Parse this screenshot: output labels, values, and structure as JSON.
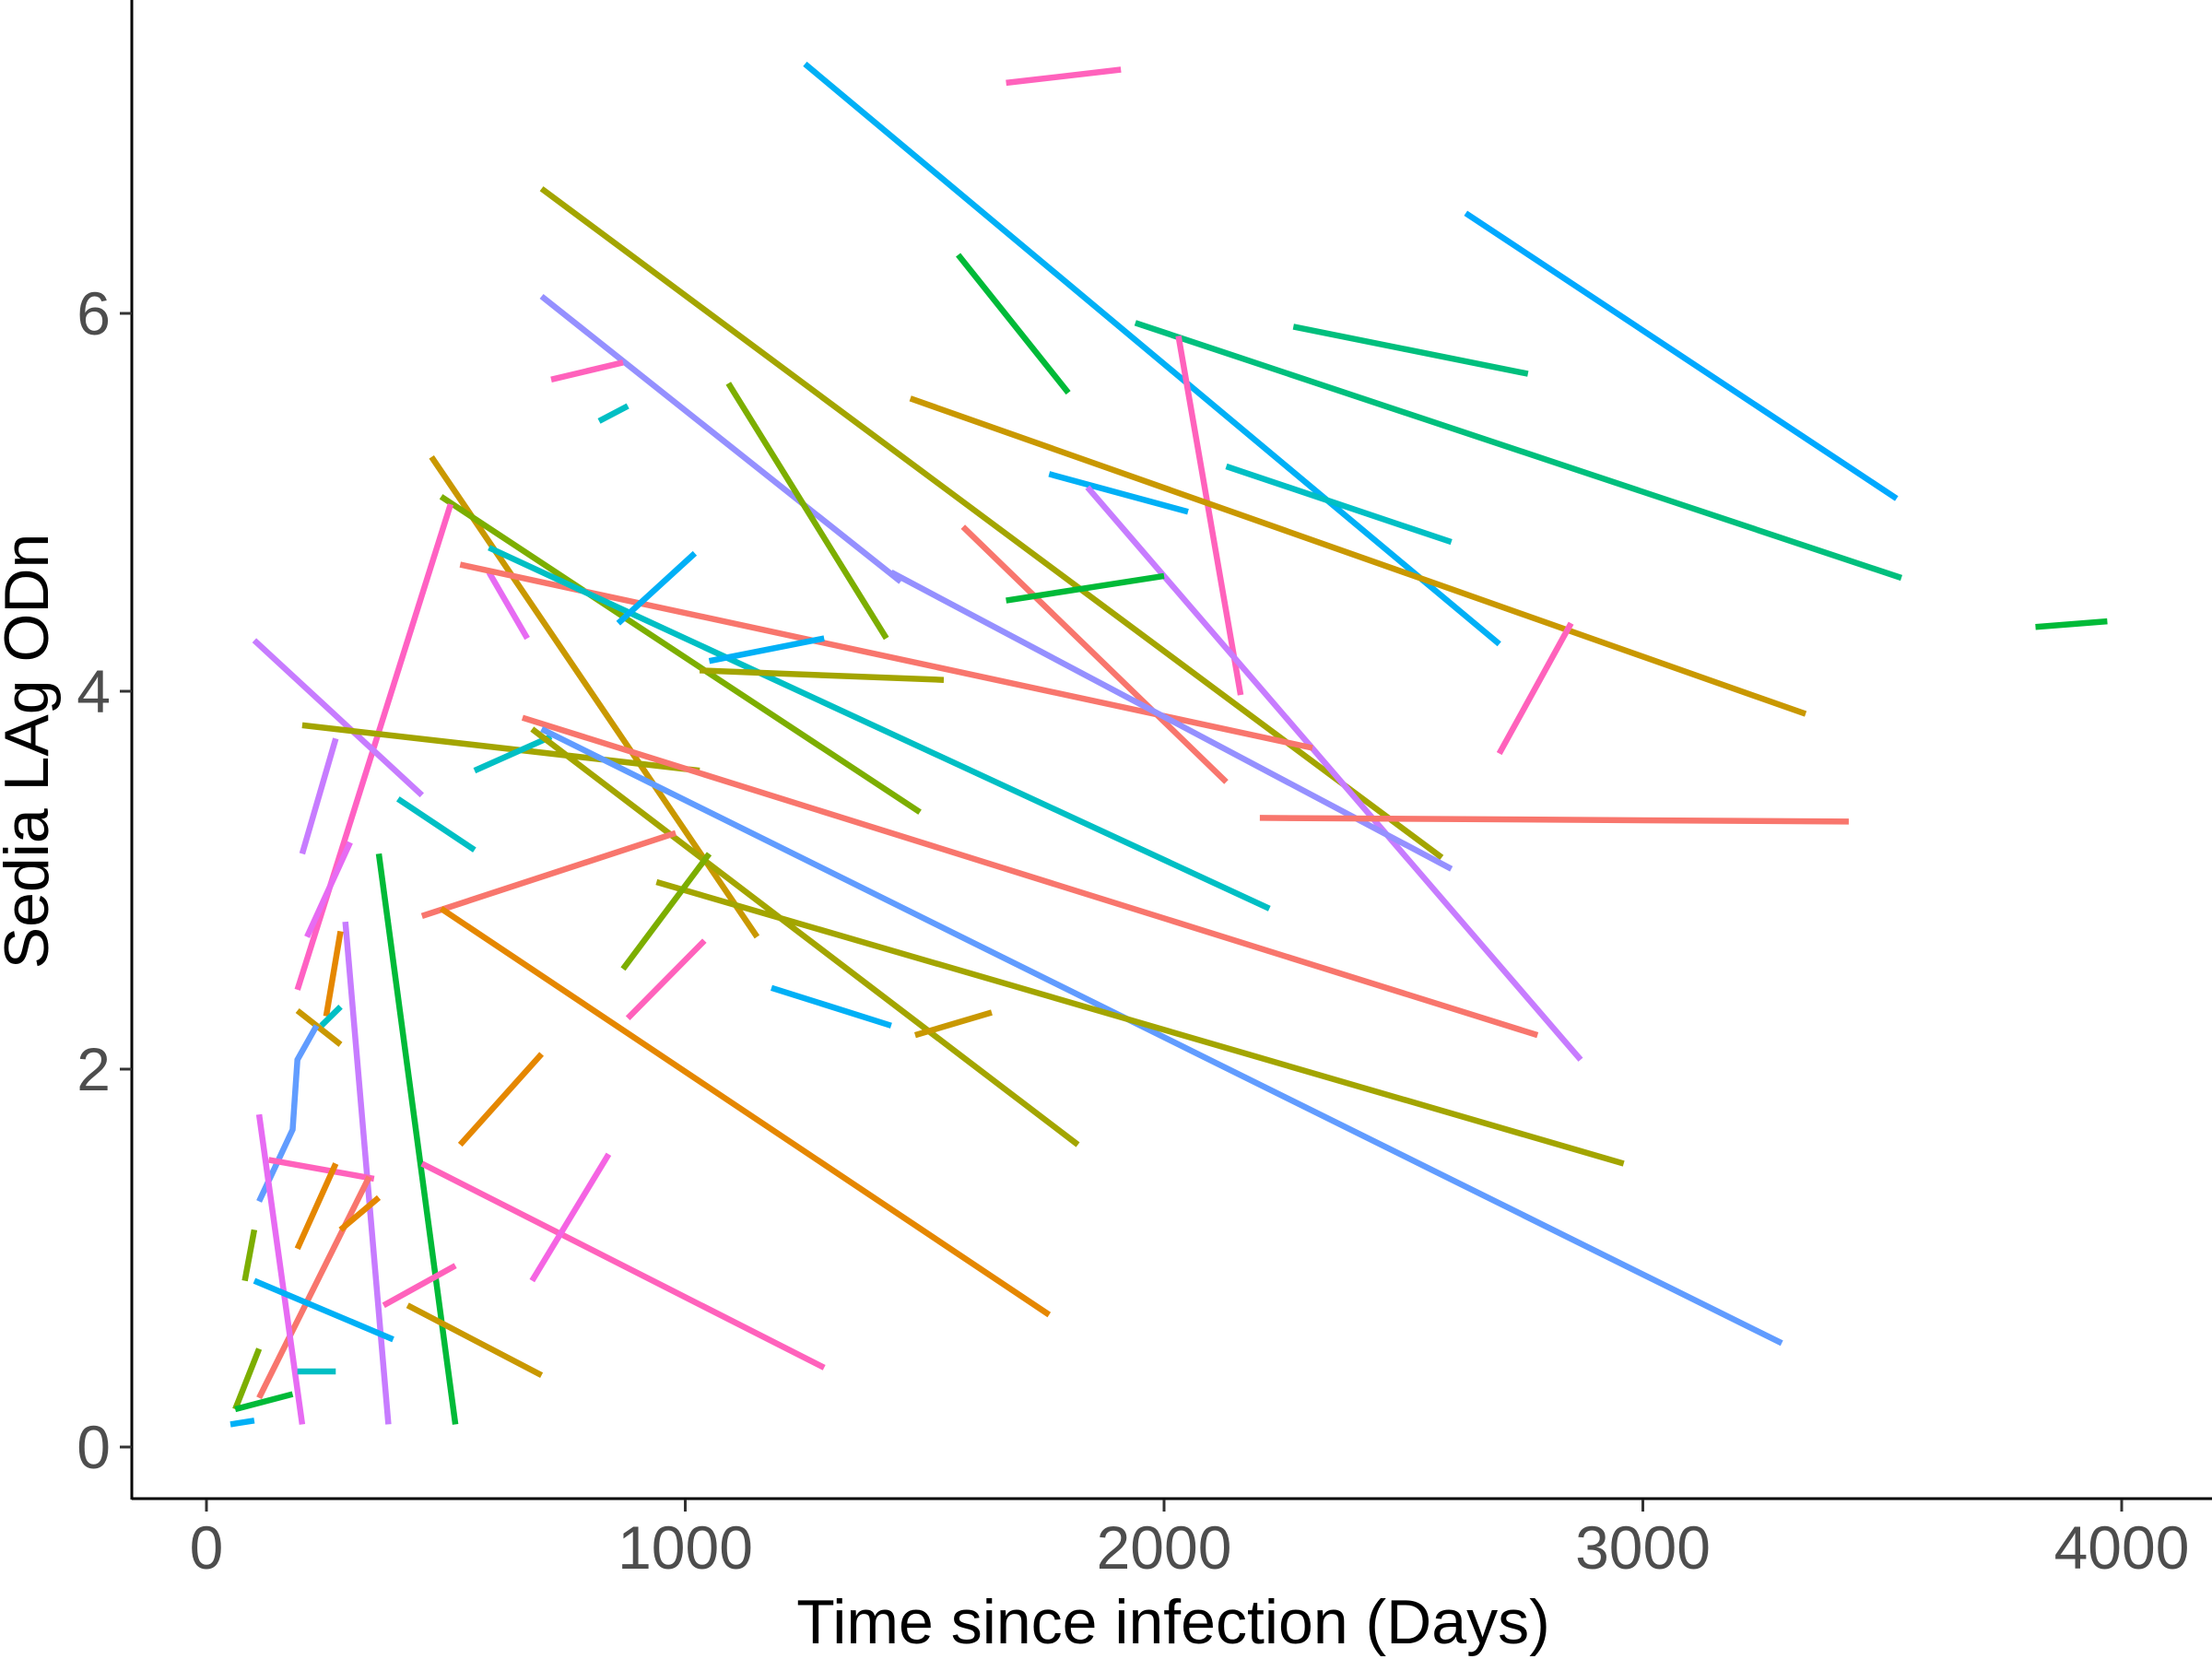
{
  "chart_data": {
    "type": "line",
    "title": "",
    "xlabel": "Time since infection (Days)",
    "ylabel": "Sedia LAg ODn",
    "xlim": [
      -150,
      4050
    ],
    "ylim": [
      -0.27,
      7.65
    ],
    "x_ticks": [
      0,
      1000,
      2000,
      3000,
      4000
    ],
    "x_tick_labels": [
      "0",
      "1000",
      "2000",
      "3000",
      "4000"
    ],
    "y_ticks": [
      0,
      2,
      4,
      6
    ],
    "y_tick_labels": [
      "0",
      "2",
      "4",
      "6"
    ],
    "grid": false,
    "legend": "none",
    "series": [
      {
        "color": "#00B0F6",
        "points": [
          [
            1250,
            7.32
          ],
          [
            2700,
            4.25
          ]
        ]
      },
      {
        "color": "#FF62BC",
        "points": [
          [
            1670,
            7.22
          ],
          [
            1910,
            7.29
          ]
        ]
      },
      {
        "color": "#A3A500",
        "points": [
          [
            700,
            6.66
          ],
          [
            2580,
            3.12
          ]
        ]
      },
      {
        "color": "#00A9FF",
        "points": [
          [
            2630,
            6.53
          ],
          [
            3530,
            5.02
          ]
        ]
      },
      {
        "color": "#00BA38",
        "points": [
          [
            1570,
            6.31
          ],
          [
            1800,
            5.58
          ]
        ]
      },
      {
        "color": "#9590FF",
        "points": [
          [
            700,
            6.09
          ],
          [
            1450,
            4.58
          ]
        ]
      },
      {
        "color": "#00BF7D",
        "points": [
          [
            1940,
            5.95
          ],
          [
            3540,
            4.6
          ]
        ]
      },
      {
        "color": "#00BF7D",
        "points": [
          [
            2270,
            5.93
          ],
          [
            2760,
            5.68
          ]
        ]
      },
      {
        "color": "#FF62BC",
        "points": [
          [
            2030,
            5.88
          ],
          [
            2160,
            3.98
          ]
        ]
      },
      {
        "color": "#FF62BC",
        "points": [
          [
            720,
            5.65
          ],
          [
            870,
            5.74
          ]
        ]
      },
      {
        "color": "#00BFC4",
        "points": [
          [
            820,
            5.43
          ],
          [
            880,
            5.51
          ]
        ]
      },
      {
        "color": "#7CAE00",
        "points": [
          [
            1090,
            5.63
          ],
          [
            1420,
            4.28
          ]
        ]
      },
      {
        "color": "#C99800",
        "points": [
          [
            1470,
            5.55
          ],
          [
            3340,
            3.88
          ]
        ]
      },
      {
        "color": "#00BFC4",
        "points": [
          [
            2130,
            5.19
          ],
          [
            2600,
            4.79
          ]
        ]
      },
      {
        "color": "#00B0F6",
        "points": [
          [
            1760,
            5.15
          ],
          [
            2050,
            4.95
          ]
        ]
      },
      {
        "color": "#C77CFF",
        "points": [
          [
            1840,
            5.08
          ],
          [
            2870,
            2.05
          ]
        ]
      },
      {
        "color": "#C99800",
        "points": [
          [
            470,
            5.24
          ],
          [
            1150,
            2.7
          ]
        ]
      },
      {
        "color": "#7CAE00",
        "points": [
          [
            490,
            5.03
          ],
          [
            1490,
            3.36
          ]
        ]
      },
      {
        "color": "#FF61C3",
        "points": [
          [
            510,
            4.99
          ],
          [
            190,
            2.42
          ]
        ]
      },
      {
        "color": "#E76BF3",
        "points": [
          [
            590,
            4.63
          ],
          [
            670,
            4.28
          ]
        ]
      },
      {
        "color": "#F8766D",
        "points": [
          [
            1580,
            4.87
          ],
          [
            2130,
            3.52
          ]
        ]
      },
      {
        "color": "#F8766D",
        "points": [
          [
            530,
            4.67
          ],
          [
            2310,
            3.7
          ]
        ]
      },
      {
        "color": "#00BFC4",
        "points": [
          [
            590,
            4.76
          ],
          [
            2220,
            2.85
          ]
        ]
      },
      {
        "color": "#00B0F6",
        "points": [
          [
            860,
            4.36
          ],
          [
            1020,
            4.73
          ]
        ]
      },
      {
        "color": "#00BA38",
        "points": [
          [
            1670,
            4.48
          ],
          [
            2000,
            4.61
          ]
        ]
      },
      {
        "color": "#9590FF",
        "points": [
          [
            1430,
            4.63
          ],
          [
            2600,
            3.06
          ]
        ]
      },
      {
        "color": "#00BA38",
        "points": [
          [
            3820,
            4.34
          ],
          [
            3970,
            4.37
          ]
        ]
      },
      {
        "color": "#FF62BC",
        "points": [
          [
            2700,
            3.67
          ],
          [
            2850,
            4.36
          ]
        ]
      },
      {
        "color": "#00B0F6",
        "points": [
          [
            1050,
            4.16
          ],
          [
            1290,
            4.28
          ]
        ]
      },
      {
        "color": "#A3A500",
        "points": [
          [
            1030,
            4.11
          ],
          [
            1540,
            4.06
          ]
        ]
      },
      {
        "color": "#C77CFF",
        "points": [
          [
            100,
            4.27
          ],
          [
            450,
            3.45
          ]
        ]
      },
      {
        "color": "#A3A500",
        "points": [
          [
            200,
            3.82
          ],
          [
            1030,
            3.58
          ]
        ]
      },
      {
        "color": "#F8766D",
        "points": [
          [
            2200,
            3.33
          ],
          [
            3430,
            3.31
          ]
        ]
      },
      {
        "color": "#F8766D",
        "points": [
          [
            660,
            3.86
          ],
          [
            2780,
            2.18
          ]
        ]
      },
      {
        "color": "#00BFC4",
        "points": [
          [
            560,
            3.58
          ],
          [
            720,
            3.76
          ]
        ]
      },
      {
        "color": "#619CFF",
        "points": [
          [
            700,
            3.8
          ],
          [
            3290,
            0.55
          ]
        ]
      },
      {
        "color": "#A3A500",
        "points": [
          [
            680,
            3.8
          ],
          [
            1820,
            1.6
          ]
        ]
      },
      {
        "color": "#A3A500",
        "points": [
          [
            940,
            2.99
          ],
          [
            2960,
            1.5
          ]
        ]
      },
      {
        "color": "#C77CFF",
        "points": [
          [
            200,
            3.14
          ],
          [
            270,
            3.75
          ]
        ]
      },
      {
        "color": "#00BFC4",
        "points": [
          [
            400,
            3.43
          ],
          [
            560,
            3.16
          ]
        ]
      },
      {
        "color": "#F8766D",
        "points": [
          [
            450,
            2.81
          ],
          [
            980,
            3.25
          ]
        ]
      },
      {
        "color": "#7CAE00",
        "points": [
          [
            870,
            2.53
          ],
          [
            1050,
            3.14
          ]
        ]
      },
      {
        "color": "#E76BF3",
        "points": [
          [
            210,
            2.7
          ],
          [
            300,
            3.2
          ]
        ]
      },
      {
        "color": "#00BA38",
        "points": [
          [
            360,
            3.14
          ],
          [
            520,
            0.12
          ]
        ]
      },
      {
        "color": "#C77CFF",
        "points": [
          [
            290,
            2.78
          ],
          [
            380,
            0.12
          ]
        ]
      },
      {
        "color": "#E58700",
        "points": [
          [
            490,
            2.85
          ],
          [
            1760,
            0.7
          ]
        ]
      },
      {
        "color": "#E58700",
        "points": [
          [
            250,
            2.28
          ],
          [
            280,
            2.73
          ]
        ]
      },
      {
        "color": "#FF62BC",
        "points": [
          [
            880,
            2.27
          ],
          [
            1040,
            2.68
          ]
        ]
      },
      {
        "color": "#00B0F6",
        "points": [
          [
            1180,
            2.43
          ],
          [
            1430,
            2.23
          ]
        ]
      },
      {
        "color": "#C99800",
        "points": [
          [
            1480,
            2.18
          ],
          [
            1640,
            2.3
          ]
        ]
      },
      {
        "color": "#C99800",
        "points": [
          [
            190,
            2.31
          ],
          [
            280,
            2.13
          ]
        ]
      },
      {
        "color": "#00BFC4",
        "points": [
          [
            240,
            2.23
          ],
          [
            280,
            2.33
          ]
        ]
      },
      {
        "color": "#619CFF",
        "points": [
          [
            110,
            1.3
          ],
          [
            180,
            1.68
          ],
          [
            190,
            2.05
          ],
          [
            230,
            2.23
          ]
        ]
      },
      {
        "color": "#E58700",
        "points": [
          [
            530,
            1.6
          ],
          [
            700,
            2.08
          ]
        ]
      },
      {
        "color": "#FF62BC",
        "points": [
          [
            450,
            1.5
          ],
          [
            1290,
            0.42
          ]
        ]
      },
      {
        "color": "#F564E3",
        "points": [
          [
            680,
            0.88
          ],
          [
            840,
            1.55
          ]
        ]
      },
      {
        "color": "#FF62BC",
        "points": [
          [
            130,
            1.52
          ],
          [
            350,
            1.42
          ]
        ]
      },
      {
        "color": "#E58700",
        "points": [
          [
            190,
            1.05
          ],
          [
            270,
            1.5
          ]
        ]
      },
      {
        "color": "#F8766D",
        "points": [
          [
            110,
            0.26
          ],
          [
            340,
            1.43
          ]
        ]
      },
      {
        "color": "#E58700",
        "points": [
          [
            280,
            1.15
          ],
          [
            360,
            1.32
          ]
        ]
      },
      {
        "color": "#E76BF3",
        "points": [
          [
            110,
            1.76
          ],
          [
            200,
            0.12
          ]
        ]
      },
      {
        "color": "#00B0F6",
        "points": [
          [
            100,
            0.88
          ],
          [
            390,
            0.57
          ]
        ]
      },
      {
        "color": "#FF62BC",
        "points": [
          [
            370,
            0.75
          ],
          [
            520,
            0.96
          ]
        ]
      },
      {
        "color": "#C99800",
        "points": [
          [
            420,
            0.75
          ],
          [
            700,
            0.38
          ]
        ]
      },
      {
        "color": "#7CAE00",
        "points": [
          [
            80,
            0.88
          ],
          [
            100,
            1.15
          ]
        ]
      },
      {
        "color": "#00BFC4",
        "points": [
          [
            190,
            0.4
          ],
          [
            270,
            0.4
          ]
        ]
      },
      {
        "color": "#7CAE00",
        "points": [
          [
            60,
            0.2
          ],
          [
            110,
            0.52
          ]
        ]
      },
      {
        "color": "#00BA38",
        "points": [
          [
            60,
            0.2
          ],
          [
            180,
            0.28
          ]
        ]
      },
      {
        "color": "#00B0F6",
        "points": [
          [
            50,
            0.12
          ],
          [
            100,
            0.14
          ]
        ]
      }
    ]
  }
}
